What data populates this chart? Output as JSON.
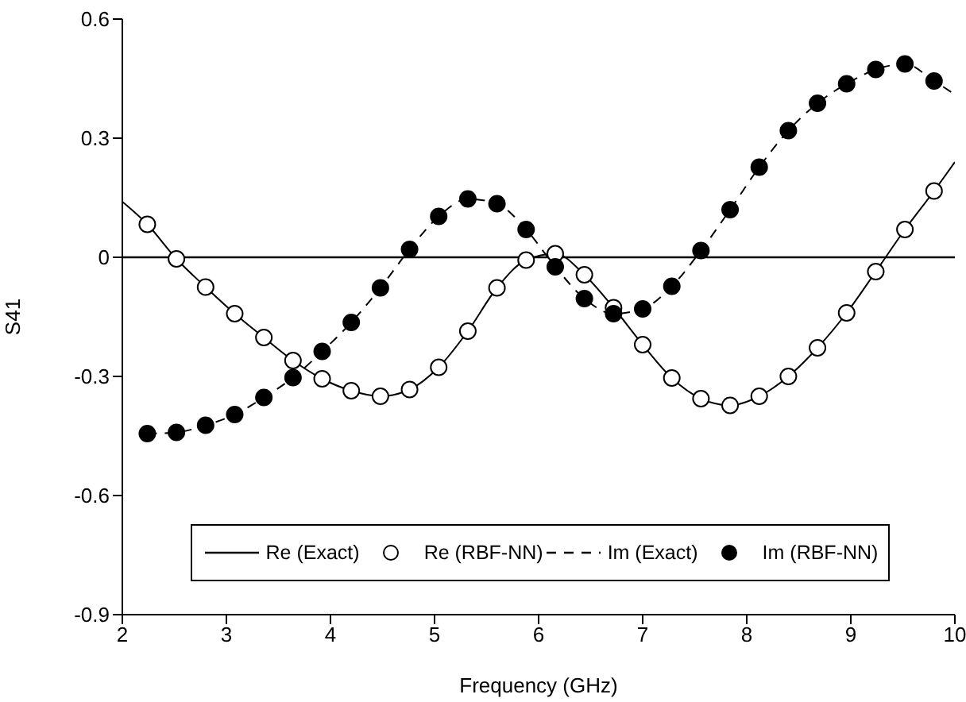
{
  "chart_data": {
    "type": "line",
    "xlabel": "Frequency (GHz)",
    "ylabel": "S41",
    "xlim": [
      2,
      10
    ],
    "xticks": [
      2,
      3,
      4,
      5,
      6,
      7,
      8,
      9,
      10
    ],
    "ylim": [
      -0.9,
      0.6
    ],
    "yticks": [
      -0.9,
      -0.6,
      -0.3,
      0,
      0.3,
      0.6
    ],
    "grid": false,
    "legend": "bottom",
    "ref_lines": [
      {
        "axis": "y",
        "value": 0,
        "color": "#000000",
        "line_style": "solid"
      }
    ],
    "series": [
      {
        "name": "Re (Exact)",
        "color": "#000000",
        "line_style": "solid",
        "marker": "none",
        "x": [
          2,
          2.24,
          2.52,
          2.8,
          3.08,
          3.36,
          3.64,
          3.92,
          4.2,
          4.48,
          4.76,
          5.04,
          5.32,
          5.6,
          5.88,
          6.16,
          6.44,
          6.72,
          7,
          7.28,
          7.56,
          7.84,
          8.12,
          8.4,
          8.68,
          8.96,
          9.24,
          9.52,
          9.8,
          10
        ],
        "values": [
          0.14,
          0.083,
          -0.004,
          -0.075,
          -0.142,
          -0.202,
          -0.26,
          -0.306,
          -0.336,
          -0.35,
          -0.333,
          -0.277,
          -0.186,
          -0.077,
          -0.007,
          0.009,
          -0.044,
          -0.127,
          -0.22,
          -0.304,
          -0.356,
          -0.373,
          -0.35,
          -0.3,
          -0.228,
          -0.14,
          -0.036,
          0.07,
          0.167,
          0.24
        ]
      },
      {
        "name": "Re (RBF-NN)",
        "type": "scatter",
        "color": "#ffffff",
        "marker": "circle",
        "x": [
          2.24,
          2.52,
          2.8,
          3.08,
          3.36,
          3.64,
          3.92,
          4.2,
          4.48,
          4.76,
          5.04,
          5.32,
          5.6,
          5.88,
          6.16,
          6.44,
          6.72,
          7,
          7.28,
          7.56,
          7.84,
          8.12,
          8.4,
          8.68,
          8.96,
          9.24,
          9.52,
          9.8
        ],
        "values": [
          0.083,
          -0.004,
          -0.075,
          -0.142,
          -0.202,
          -0.26,
          -0.306,
          -0.336,
          -0.35,
          -0.333,
          -0.277,
          -0.186,
          -0.077,
          -0.007,
          0.009,
          -0.044,
          -0.127,
          -0.22,
          -0.304,
          -0.356,
          -0.373,
          -0.35,
          -0.3,
          -0.228,
          -0.14,
          -0.036,
          0.07,
          0.167
        ]
      },
      {
        "name": "Im (Exact)",
        "color": "#000000",
        "line_style": "dashed",
        "marker": "none",
        "x": [
          2.24,
          2.52,
          2.8,
          3.08,
          3.36,
          3.64,
          3.92,
          4.2,
          4.48,
          4.76,
          5.04,
          5.32,
          5.6,
          5.88,
          6.16,
          6.44,
          6.72,
          7,
          7.28,
          7.56,
          7.84,
          8.12,
          8.4,
          8.68,
          8.96,
          9.24,
          9.52,
          9.8,
          10
        ],
        "values": [
          -0.444,
          -0.441,
          -0.423,
          -0.396,
          -0.353,
          -0.303,
          -0.237,
          -0.164,
          -0.077,
          0.02,
          0.103,
          0.147,
          0.135,
          0.07,
          -0.024,
          -0.104,
          -0.142,
          -0.13,
          -0.073,
          0.017,
          0.12,
          0.227,
          0.319,
          0.388,
          0.437,
          0.473,
          0.487,
          0.444,
          0.41
        ]
      },
      {
        "name": "Im (RBF-NN)",
        "type": "scatter",
        "color": "#000000",
        "marker": "circle",
        "x": [
          2.24,
          2.52,
          2.8,
          3.08,
          3.36,
          3.64,
          3.92,
          4.2,
          4.48,
          4.76,
          5.04,
          5.32,
          5.6,
          5.88,
          6.16,
          6.44,
          6.72,
          7,
          7.28,
          7.56,
          7.84,
          8.12,
          8.4,
          8.68,
          8.96,
          9.24,
          9.52,
          9.8
        ],
        "values": [
          -0.444,
          -0.441,
          -0.423,
          -0.396,
          -0.353,
          -0.303,
          -0.237,
          -0.164,
          -0.077,
          0.02,
          0.103,
          0.147,
          0.135,
          0.07,
          -0.024,
          -0.104,
          -0.142,
          -0.13,
          -0.073,
          0.017,
          0.12,
          0.227,
          0.319,
          0.388,
          0.437,
          0.473,
          0.487,
          0.444
        ]
      }
    ]
  }
}
